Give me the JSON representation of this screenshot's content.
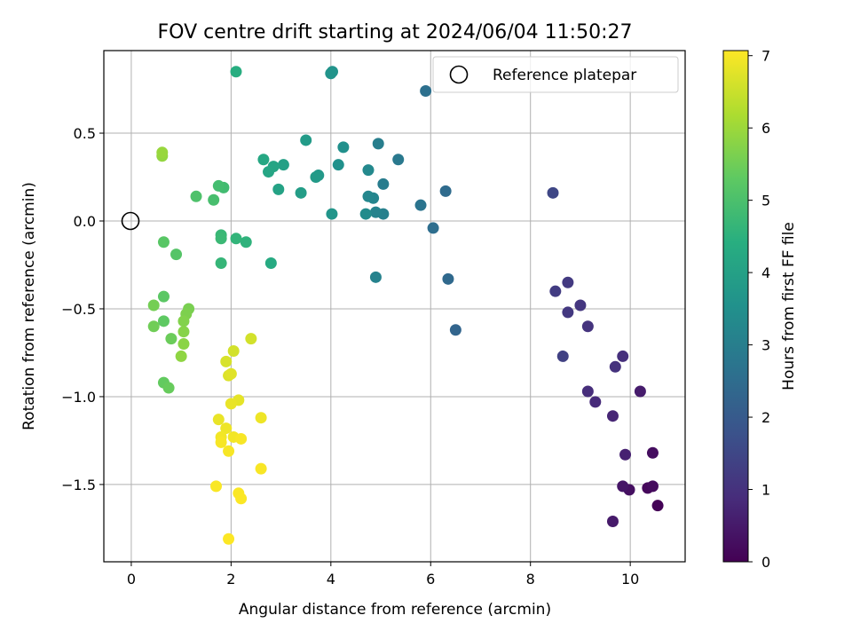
{
  "chart_data": {
    "type": "scatter",
    "title": "FOV centre drift starting at 2024/06/04 11:50:27",
    "xlabel": "Angular distance from reference (arcmin)",
    "ylabel": "Rotation from reference (arcmin)",
    "xlim": [
      -0.55,
      11.1
    ],
    "ylim": [
      -1.94,
      0.97
    ],
    "xticks": [
      0,
      2,
      4,
      6,
      8,
      10
    ],
    "yticks": [
      -1.5,
      -1.0,
      -0.5,
      0.0,
      0.5
    ],
    "xtick_labels": [
      "0",
      "2",
      "4",
      "6",
      "8",
      "10"
    ],
    "ytick_labels": [
      "−1.5",
      "−1.0",
      "−0.5",
      "0.0",
      "0.5"
    ],
    "grid": true,
    "legend": {
      "position": "top-right",
      "label": "Reference platepar"
    },
    "reference_point": {
      "x": 0,
      "y": 0
    },
    "colorbar": {
      "label": "Hours from first FF file",
      "colormap": "viridis",
      "range": [
        0,
        7.07
      ],
      "ticks": [
        0,
        1,
        2,
        3,
        4,
        5,
        6,
        7
      ],
      "tick_labels": [
        "0",
        "1",
        "2",
        "3",
        "4",
        "5",
        "6",
        "7"
      ]
    },
    "points": [
      {
        "x": 10.55,
        "y": -1.62,
        "c": 0.05
      },
      {
        "x": 10.35,
        "y": -1.52,
        "c": 0.15
      },
      {
        "x": 10.45,
        "y": -1.51,
        "c": 0.2
      },
      {
        "x": 10.45,
        "y": -1.32,
        "c": 0.25
      },
      {
        "x": 9.98,
        "y": -1.53,
        "c": 0.3
      },
      {
        "x": 9.85,
        "y": -1.51,
        "c": 0.4
      },
      {
        "x": 9.65,
        "y": -1.71,
        "c": 0.5
      },
      {
        "x": 10.2,
        "y": -0.97,
        "c": 0.55
      },
      {
        "x": 9.9,
        "y": -1.33,
        "c": 0.65
      },
      {
        "x": 9.65,
        "y": -1.11,
        "c": 0.75
      },
      {
        "x": 9.3,
        "y": -1.03,
        "c": 0.85
      },
      {
        "x": 9.15,
        "y": -0.97,
        "c": 0.9
      },
      {
        "x": 9.85,
        "y": -0.77,
        "c": 0.95
      },
      {
        "x": 9.7,
        "y": -0.83,
        "c": 1.0
      },
      {
        "x": 9.15,
        "y": -0.6,
        "c": 1.05
      },
      {
        "x": 9.0,
        "y": -0.48,
        "c": 1.1
      },
      {
        "x": 8.75,
        "y": -0.52,
        "c": 1.15
      },
      {
        "x": 8.75,
        "y": -0.35,
        "c": 1.2
      },
      {
        "x": 8.5,
        "y": -0.4,
        "c": 1.25
      },
      {
        "x": 8.65,
        "y": -0.77,
        "c": 1.35
      },
      {
        "x": 8.45,
        "y": 0.16,
        "c": 1.5
      },
      {
        "x": 6.5,
        "y": -0.62,
        "c": 2.3
      },
      {
        "x": 6.35,
        "y": -0.33,
        "c": 2.4
      },
      {
        "x": 6.3,
        "y": 0.17,
        "c": 2.45
      },
      {
        "x": 6.05,
        "y": -0.04,
        "c": 2.55
      },
      {
        "x": 5.9,
        "y": 0.74,
        "c": 2.6
      },
      {
        "x": 5.8,
        "y": 0.09,
        "c": 2.7
      },
      {
        "x": 5.35,
        "y": 0.35,
        "c": 2.85
      },
      {
        "x": 5.05,
        "y": 0.21,
        "c": 2.95
      },
      {
        "x": 4.95,
        "y": 0.44,
        "c": 3.0
      },
      {
        "x": 5.05,
        "y": 0.04,
        "c": 3.05
      },
      {
        "x": 4.9,
        "y": -0.32,
        "c": 3.1
      },
      {
        "x": 4.9,
        "y": 0.05,
        "c": 3.15
      },
      {
        "x": 4.85,
        "y": 0.13,
        "c": 3.2
      },
      {
        "x": 4.75,
        "y": 0.14,
        "c": 3.25
      },
      {
        "x": 4.75,
        "y": 0.29,
        "c": 3.3
      },
      {
        "x": 4.7,
        "y": 0.04,
        "c": 3.35
      },
      {
        "x": 4.25,
        "y": 0.42,
        "c": 3.5
      },
      {
        "x": 4.15,
        "y": 0.32,
        "c": 3.55
      },
      {
        "x": 4.03,
        "y": 0.85,
        "c": 3.6
      },
      {
        "x": 4.0,
        "y": 0.84,
        "c": 3.62
      },
      {
        "x": 4.02,
        "y": 0.04,
        "c": 3.65
      },
      {
        "x": 3.75,
        "y": 0.26,
        "c": 3.75
      },
      {
        "x": 3.7,
        "y": 0.25,
        "c": 3.8
      },
      {
        "x": 3.5,
        "y": 0.46,
        "c": 3.85
      },
      {
        "x": 3.4,
        "y": 0.16,
        "c": 3.9
      },
      {
        "x": 3.05,
        "y": 0.32,
        "c": 4.0
      },
      {
        "x": 2.95,
        "y": 0.18,
        "c": 4.05
      },
      {
        "x": 2.85,
        "y": 0.31,
        "c": 4.1
      },
      {
        "x": 2.75,
        "y": 0.28,
        "c": 4.15
      },
      {
        "x": 2.65,
        "y": 0.35,
        "c": 4.2
      },
      {
        "x": 2.8,
        "y": -0.24,
        "c": 4.3
      },
      {
        "x": 2.1,
        "y": 0.85,
        "c": 4.4
      },
      {
        "x": 2.3,
        "y": -0.12,
        "c": 4.55
      },
      {
        "x": 2.1,
        "y": -0.1,
        "c": 4.6
      },
      {
        "x": 1.8,
        "y": -0.24,
        "c": 4.65
      },
      {
        "x": 1.8,
        "y": -0.08,
        "c": 4.7
      },
      {
        "x": 1.8,
        "y": -0.1,
        "c": 4.75
      },
      {
        "x": 1.85,
        "y": 0.19,
        "c": 4.85
      },
      {
        "x": 1.75,
        "y": 0.2,
        "c": 4.9
      },
      {
        "x": 1.65,
        "y": 0.12,
        "c": 4.95
      },
      {
        "x": 1.3,
        "y": 0.14,
        "c": 5.05
      },
      {
        "x": 0.9,
        "y": -0.19,
        "c": 5.15
      },
      {
        "x": 0.65,
        "y": -0.12,
        "c": 5.2
      },
      {
        "x": 0.65,
        "y": -0.43,
        "c": 5.25
      },
      {
        "x": 0.65,
        "y": -0.57,
        "c": 5.3
      },
      {
        "x": 0.65,
        "y": -0.92,
        "c": 5.35
      },
      {
        "x": 0.75,
        "y": -0.95,
        "c": 5.4
      },
      {
        "x": 0.8,
        "y": -0.67,
        "c": 5.45
      },
      {
        "x": 0.45,
        "y": -0.6,
        "c": 5.5
      },
      {
        "x": 0.45,
        "y": -0.48,
        "c": 5.55
      },
      {
        "x": 1.15,
        "y": -0.5,
        "c": 5.6
      },
      {
        "x": 1.1,
        "y": -0.53,
        "c": 5.65
      },
      {
        "x": 1.05,
        "y": -0.57,
        "c": 5.7
      },
      {
        "x": 1.05,
        "y": -0.63,
        "c": 5.75
      },
      {
        "x": 1.05,
        "y": -0.7,
        "c": 5.8
      },
      {
        "x": 1.0,
        "y": -0.77,
        "c": 5.85
      },
      {
        "x": 0.62,
        "y": 0.37,
        "c": 5.9
      },
      {
        "x": 0.62,
        "y": 0.39,
        "c": 5.95
      },
      {
        "x": 2.4,
        "y": -0.67,
        "c": 6.6
      },
      {
        "x": 2.05,
        "y": -0.74,
        "c": 6.6
      },
      {
        "x": 1.9,
        "y": -0.8,
        "c": 6.65
      },
      {
        "x": 1.95,
        "y": -0.88,
        "c": 6.7
      },
      {
        "x": 2.0,
        "y": -0.87,
        "c": 6.75
      },
      {
        "x": 2.15,
        "y": -1.02,
        "c": 6.8
      },
      {
        "x": 2.0,
        "y": -1.04,
        "c": 6.85
      },
      {
        "x": 1.75,
        "y": -1.13,
        "c": 6.85
      },
      {
        "x": 2.6,
        "y": -1.12,
        "c": 6.9
      },
      {
        "x": 1.9,
        "y": -1.18,
        "c": 6.9
      },
      {
        "x": 1.8,
        "y": -1.23,
        "c": 6.95
      },
      {
        "x": 2.05,
        "y": -1.23,
        "c": 6.95
      },
      {
        "x": 2.2,
        "y": -1.24,
        "c": 7.0
      },
      {
        "x": 1.8,
        "y": -1.26,
        "c": 7.0
      },
      {
        "x": 1.95,
        "y": -1.31,
        "c": 7.0
      },
      {
        "x": 2.6,
        "y": -1.41,
        "c": 7.02
      },
      {
        "x": 1.7,
        "y": -1.51,
        "c": 7.03
      },
      {
        "x": 2.15,
        "y": -1.55,
        "c": 7.04
      },
      {
        "x": 2.2,
        "y": -1.58,
        "c": 7.05
      },
      {
        "x": 1.95,
        "y": -1.81,
        "c": 7.06
      }
    ]
  }
}
